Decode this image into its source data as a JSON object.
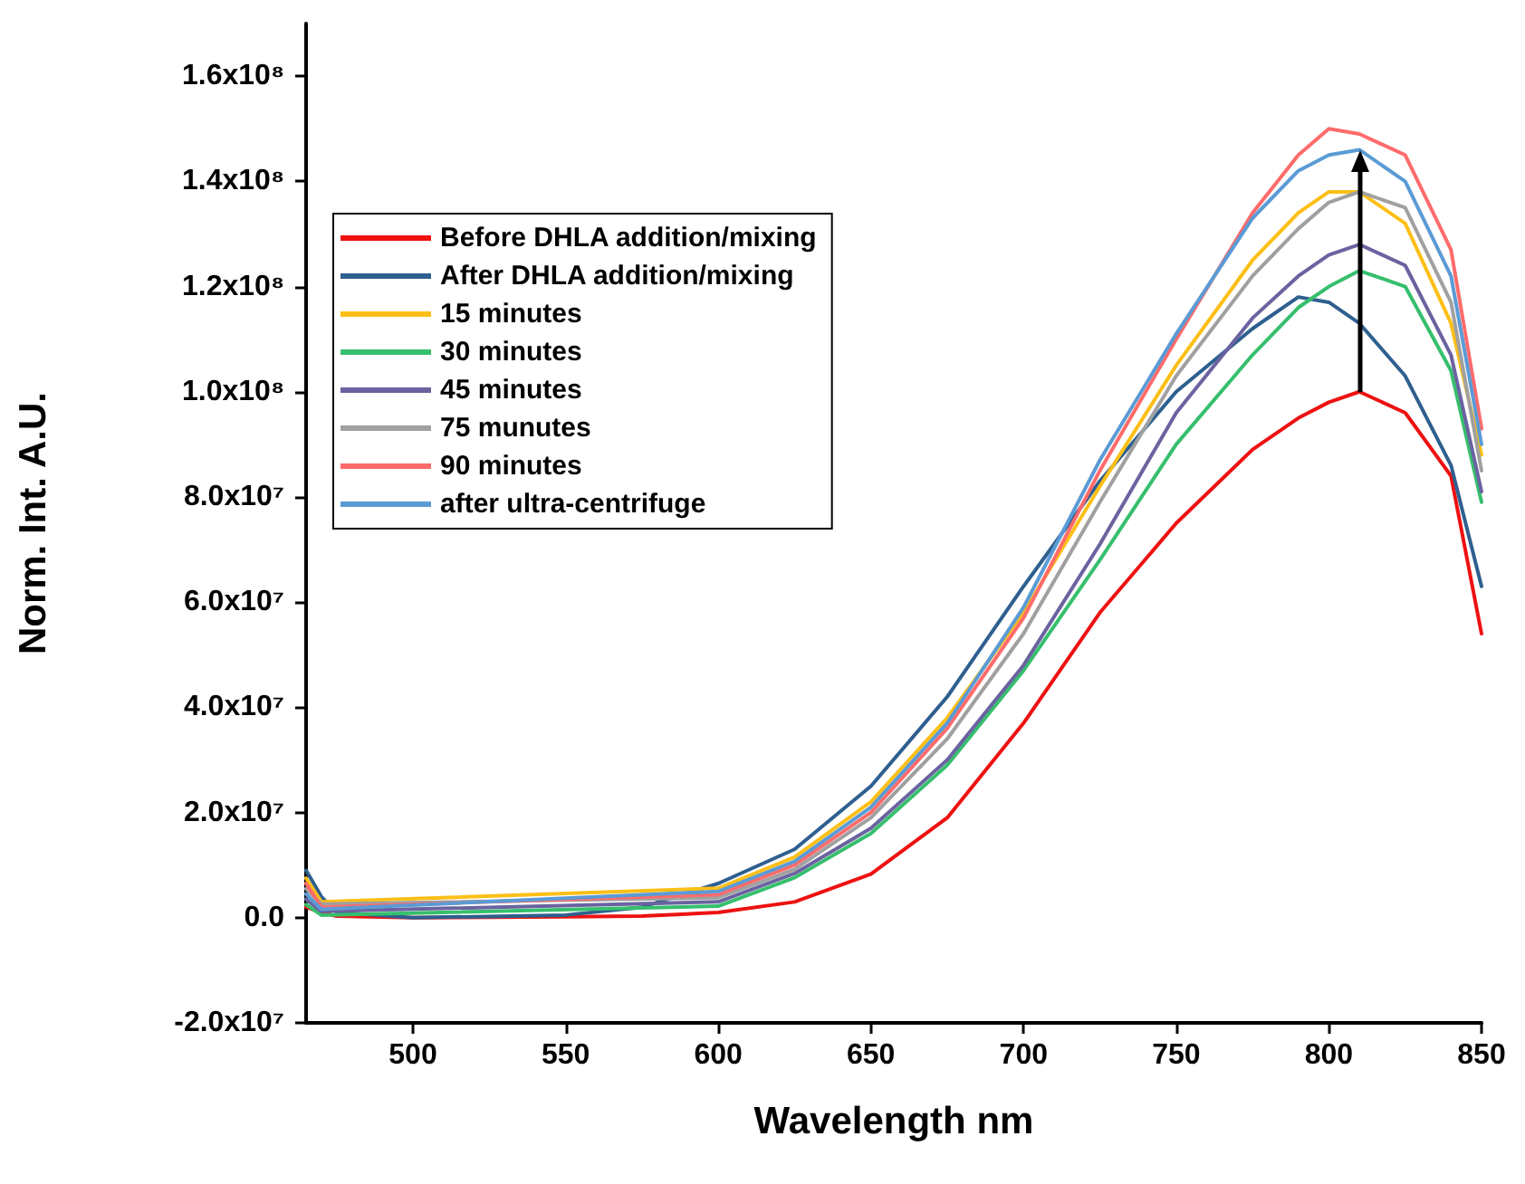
{
  "chart_data": {
    "type": "line",
    "xlabel": "Wavelength nm",
    "ylabel": "Norm. Int. A.U.",
    "x": [
      465,
      470,
      475,
      500,
      550,
      575,
      600,
      625,
      650,
      675,
      700,
      725,
      750,
      775,
      790,
      800,
      810,
      825,
      840,
      850
    ],
    "xlim": [
      465,
      850
    ],
    "xticks": [
      500,
      550,
      600,
      650,
      700,
      750,
      800,
      850
    ],
    "ylim": [
      -20000000,
      170000000
    ],
    "yticks": [
      {
        "value": -20000000,
        "label": "-2.0x10⁷"
      },
      {
        "value": 0,
        "label": "0.0"
      },
      {
        "value": 20000000,
        "label": "2.0x10⁷"
      },
      {
        "value": 40000000,
        "label": "4.0x10⁷"
      },
      {
        "value": 60000000,
        "label": "6.0x10⁷"
      },
      {
        "value": 80000000,
        "label": "8.0x10⁷"
      },
      {
        "value": 100000000,
        "label": "1.0x10⁸"
      },
      {
        "value": 120000000,
        "label": "1.2x10⁸"
      },
      {
        "value": 140000000,
        "label": "1.4x10⁸"
      },
      {
        "value": 160000000,
        "label": "1.6x10⁸"
      }
    ],
    "grid": false,
    "legend": "top left",
    "marker": "none",
    "line_style": "solid",
    "series": [
      {
        "name": "Before DHLA addition/mixing",
        "color": "#ee1111",
        "values": [
          2000000,
          1000000,
          300000,
          0,
          200000,
          300000,
          1000000,
          3000000,
          8300000,
          19000000,
          37000000,
          58000000,
          75000000,
          89000000,
          95000000,
          98000000,
          100000000,
          96000000,
          84000000,
          54000000
        ]
      },
      {
        "name": "After DHLA addition/mixing",
        "color": "#2e5f8f",
        "values": [
          9000000,
          4000000,
          1000000,
          0,
          500000,
          2000000,
          6500000,
          13000000,
          25000000,
          42000000,
          63000000,
          83000000,
          100000000,
          112000000,
          118000000,
          117000000,
          113000000,
          103000000,
          86000000,
          63000000
        ]
      },
      {
        "name": "15 minutes",
        "color": "#fcbf16",
        "x": [
          465,
          470,
          600,
          625,
          650,
          675,
          700,
          725,
          750,
          775,
          790,
          800,
          810,
          825,
          840,
          850
        ],
        "values": [
          7500000,
          3000000,
          5600000,
          11500000,
          22000000,
          38000000,
          58000000,
          82000000,
          105000000,
          125000000,
          134000000,
          138000000,
          138000000,
          132000000,
          113000000,
          88000000
        ]
      },
      {
        "name": "30 minutes",
        "color": "#36bf6d",
        "x": [
          465,
          470,
          600,
          625,
          650,
          675,
          700,
          725,
          750,
          775,
          790,
          800,
          810,
          825,
          840,
          850
        ],
        "values": [
          2500000,
          500000,
          2200000,
          7600000,
          16000000,
          29000000,
          47000000,
          68000000,
          90000000,
          107000000,
          116000000,
          120000000,
          123000000,
          120000000,
          104000000,
          79000000
        ]
      },
      {
        "name": "45 minutes",
        "color": "#6a63a0",
        "x": [
          465,
          470,
          600,
          625,
          650,
          675,
          700,
          725,
          750,
          775,
          790,
          800,
          810,
          825,
          840,
          850
        ],
        "values": [
          3500000,
          1200000,
          3000000,
          8400000,
          17000000,
          30000000,
          48000000,
          71000000,
          96000000,
          114000000,
          122000000,
          126000000,
          128000000,
          124000000,
          107000000,
          81000000
        ]
      },
      {
        "name": "75 munutes",
        "color": "#a0a0a0",
        "x": [
          465,
          470,
          600,
          625,
          650,
          675,
          700,
          725,
          750,
          775,
          790,
          800,
          810,
          825,
          840,
          850
        ],
        "values": [
          5500000,
          2600000,
          3800000,
          9200000,
          19000000,
          34000000,
          54000000,
          79000000,
          103000000,
          122000000,
          131000000,
          136000000,
          138000000,
          135000000,
          117000000,
          85000000
        ]
      },
      {
        "name": "90 minutes",
        "color": "#ff6b6b",
        "x": [
          465,
          470,
          600,
          625,
          650,
          675,
          700,
          725,
          750,
          775,
          790,
          800,
          810,
          825,
          840,
          850
        ],
        "values": [
          6500000,
          2000000,
          4400000,
          10000000,
          20000000,
          36000000,
          57000000,
          85000000,
          110000000,
          134000000,
          145000000,
          150000000,
          149000000,
          145000000,
          127000000,
          93000000
        ]
      },
      {
        "name": "after ultra-centrifuge",
        "color": "#5b9bd5",
        "x": [
          465,
          470,
          600,
          625,
          650,
          675,
          700,
          725,
          750,
          775,
          790,
          800,
          810,
          825,
          840,
          850
        ],
        "values": [
          4500000,
          1600000,
          5000000,
          10700000,
          21000000,
          37000000,
          59000000,
          87000000,
          111000000,
          133000000,
          142000000,
          145000000,
          146000000,
          140000000,
          122000000,
          90000000
        ]
      }
    ]
  }
}
